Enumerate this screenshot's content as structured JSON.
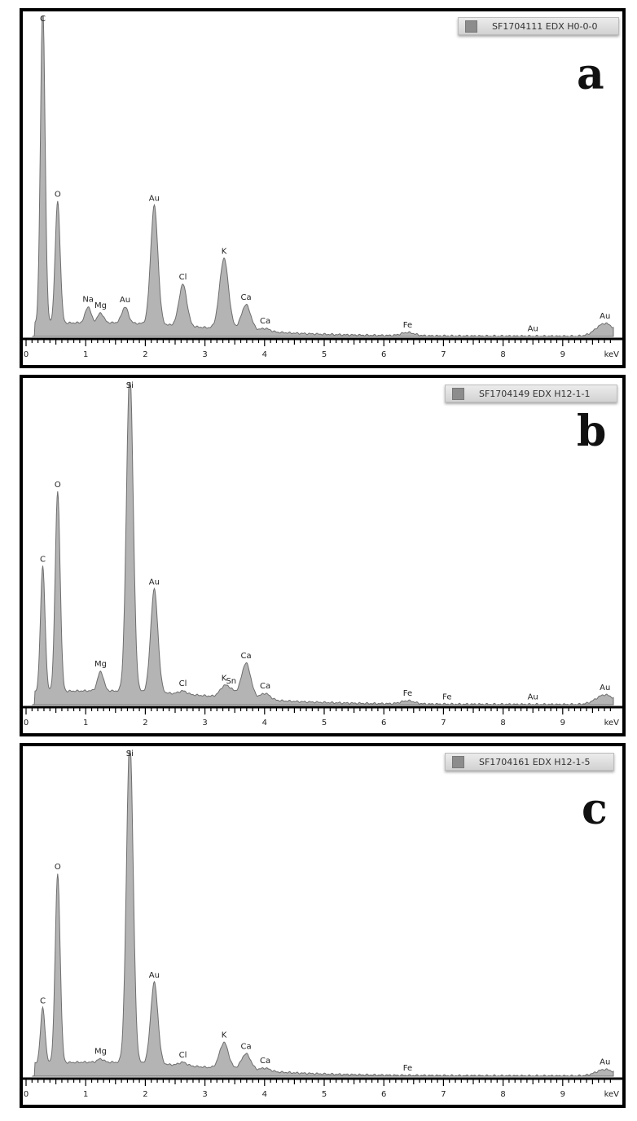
{
  "figure": {
    "x_unit_label": "keV",
    "x_ticks": [
      "0",
      "1",
      "2",
      "3",
      "4",
      "5",
      "6",
      "7",
      "8",
      "9"
    ],
    "colors": {
      "spectrum_fill": "#b4b4b4",
      "spectrum_line": "#6e6e6e",
      "frame": "#000000",
      "legend_bg": "#dcdcdc"
    }
  },
  "panels": [
    {
      "letter": "a",
      "legend": "SF1704111 EDX H0-0-0"
    },
    {
      "letter": "b",
      "legend": "SF1704149 EDX H12-1-1"
    },
    {
      "letter": "c",
      "legend": "SF1704161 EDX H12-1-5"
    }
  ],
  "chart_data": [
    {
      "type": "area",
      "title": "SF1704111 EDX H0-0-0",
      "panel_label": "a",
      "xlabel": "keV",
      "ylabel": "",
      "xlim": [
        0,
        9.8
      ],
      "x_ticks": [
        0,
        1,
        2,
        3,
        4,
        5,
        6,
        7,
        8,
        9
      ],
      "grid": false,
      "legend_position": "top-right",
      "peaks": [
        {
          "element": "C",
          "x": 0.28,
          "height": 1.0
        },
        {
          "element": "O",
          "x": 0.53,
          "height": 0.38
        },
        {
          "element": "Na",
          "x": 1.04,
          "height": 0.05
        },
        {
          "element": "Mg",
          "x": 1.25,
          "height": 0.03
        },
        {
          "element": "Au",
          "x": 1.66,
          "height": 0.05
        },
        {
          "element": "Au",
          "x": 2.15,
          "height": 0.37
        },
        {
          "element": "Cl",
          "x": 2.63,
          "height": 0.13
        },
        {
          "element": "K",
          "x": 3.32,
          "height": 0.22
        },
        {
          "element": "Ca",
          "x": 3.69,
          "height": 0.08
        },
        {
          "element": "Ca",
          "x": 4.01,
          "height": 0.01
        },
        {
          "element": "Fe",
          "x": 6.4,
          "height": 0.01
        },
        {
          "element": "Au",
          "x": 8.5,
          "height": 0.0
        },
        {
          "element": "Au",
          "x": 9.71,
          "height": 0.04
        }
      ]
    },
    {
      "type": "area",
      "title": "SF1704149 EDX H12-1-1",
      "panel_label": "b",
      "xlabel": "keV",
      "ylabel": "",
      "xlim": [
        0,
        9.8
      ],
      "x_ticks": [
        0,
        1,
        2,
        3,
        4,
        5,
        6,
        7,
        8,
        9
      ],
      "grid": false,
      "legend_position": "top-right",
      "peaks": [
        {
          "element": "C",
          "x": 0.28,
          "height": 0.39
        },
        {
          "element": "O",
          "x": 0.53,
          "height": 0.62
        },
        {
          "element": "Mg",
          "x": 1.25,
          "height": 0.06
        },
        {
          "element": "Si",
          "x": 1.74,
          "height": 1.0
        },
        {
          "element": "Au",
          "x": 2.15,
          "height": 0.32
        },
        {
          "element": "Cl",
          "x": 2.63,
          "height": 0.01
        },
        {
          "element": "K",
          "x": 3.32,
          "height": 0.03
        },
        {
          "element": "Sn",
          "x": 3.44,
          "height": 0.02
        },
        {
          "element": "Ca",
          "x": 3.69,
          "height": 0.11
        },
        {
          "element": "Ca",
          "x": 4.01,
          "height": 0.02
        },
        {
          "element": "Fe",
          "x": 6.4,
          "height": 0.01
        },
        {
          "element": "Fe",
          "x": 7.06,
          "height": 0.0
        },
        {
          "element": "Au",
          "x": 8.5,
          "height": 0.0
        },
        {
          "element": "Au",
          "x": 9.71,
          "height": 0.03
        }
      ]
    },
    {
      "type": "area",
      "title": "SF1704161 EDX H12-1-5",
      "panel_label": "c",
      "xlabel": "keV",
      "ylabel": "",
      "xlim": [
        0,
        9.8
      ],
      "x_ticks": [
        0,
        1,
        2,
        3,
        4,
        5,
        6,
        7,
        8,
        9
      ],
      "grid": false,
      "legend_position": "top-right",
      "peaks": [
        {
          "element": "C",
          "x": 0.28,
          "height": 0.17
        },
        {
          "element": "O",
          "x": 0.53,
          "height": 0.58
        },
        {
          "element": "Mg",
          "x": 1.25,
          "height": 0.01
        },
        {
          "element": "Si",
          "x": 1.74,
          "height": 1.0
        },
        {
          "element": "Au",
          "x": 2.15,
          "height": 0.25
        },
        {
          "element": "Cl",
          "x": 2.63,
          "height": 0.01
        },
        {
          "element": "K",
          "x": 3.32,
          "height": 0.08
        },
        {
          "element": "Ca",
          "x": 3.69,
          "height": 0.05
        },
        {
          "element": "Ca",
          "x": 4.01,
          "height": 0.01
        },
        {
          "element": "Fe",
          "x": 6.4,
          "height": 0.0
        },
        {
          "element": "Au",
          "x": 9.71,
          "height": 0.02
        }
      ]
    }
  ]
}
